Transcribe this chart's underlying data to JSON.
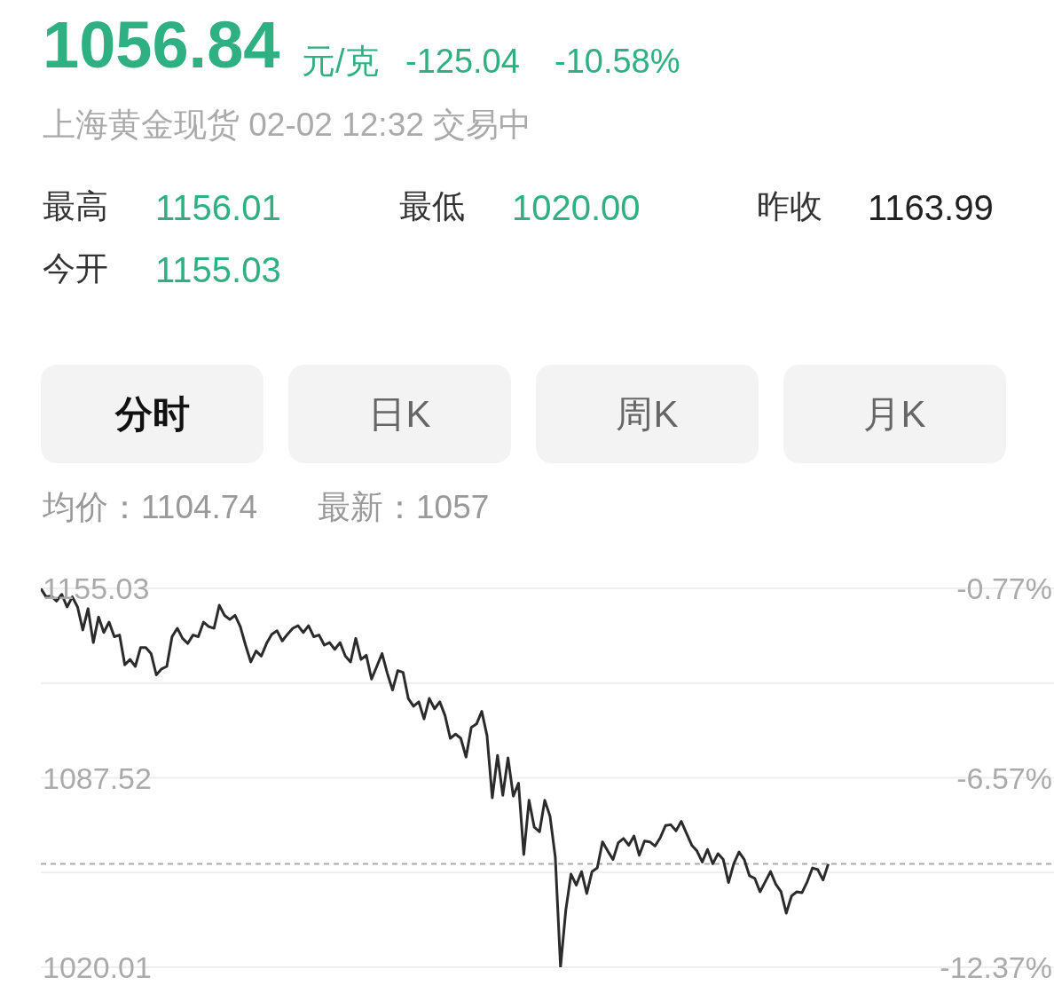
{
  "chart_data": {
    "type": "line",
    "title": "1056.84",
    "subtitle": "上海黄金现货 02-02 12:32 交易中",
    "annotations": [
      "元/克",
      "-125.04",
      "-10.58%",
      "最高",
      "1156.01",
      "最低",
      "1020.00",
      "昨收",
      "1163.99",
      "今开",
      "1155.03",
      "分时",
      "日K",
      "周K",
      "月K",
      "均价：1104.74",
      "最新：1057"
    ],
    "categories": [
      null,
      null,
      null,
      null,
      null,
      null,
      null,
      null,
      null,
      null,
      null,
      null,
      null,
      null,
      null,
      null,
      null,
      null,
      null,
      null,
      null,
      null,
      null,
      null,
      null,
      null,
      null,
      null,
      null,
      null,
      null,
      null,
      null,
      null,
      null,
      null,
      null,
      null,
      null,
      null,
      null,
      null,
      null,
      null,
      null,
      null,
      null,
      null,
      null,
      null,
      null,
      null,
      null,
      null,
      null,
      null,
      null,
      null,
      null,
      null,
      null,
      null,
      null,
      null,
      null,
      null,
      null,
      null,
      null,
      null,
      null,
      null,
      null,
      null,
      null,
      null,
      null,
      null,
      null,
      null,
      null,
      null,
      null,
      null,
      null,
      null,
      null,
      null,
      null,
      null,
      null,
      null,
      null,
      null,
      null,
      null,
      null,
      null,
      null,
      null,
      null,
      null,
      null,
      null,
      null,
      null,
      null,
      null,
      null,
      null,
      null,
      null,
      null,
      null,
      null,
      null,
      null,
      null,
      null,
      null,
      null,
      null,
      null,
      null,
      null,
      null,
      null,
      null,
      null,
      null,
      null,
      null,
      null,
      null,
      null,
      null,
      null,
      null,
      null,
      null,
      null,
      null,
      null,
      null,
      null,
      null,
      null,
      null,
      null,
      null,
      null,
      null,
      null,
      null,
      null,
      null,
      null,
      null,
      null,
      null,
      null,
      null,
      null,
      null,
      null,
      null,
      null,
      null,
      null,
      null,
      null,
      null,
      null,
      null,
      null,
      null,
      null,
      null,
      null,
      null,
      null,
      null,
      null,
      null,
      null,
      null,
      null,
      null,
      null,
      null,
      null,
      null,
      null,
      null
    ],
    "values": [
      1155.0,
      1152.0,
      1152.3,
      1150.5,
      1152.9,
      1148.4,
      1152.0,
      1148.4,
      1140.2,
      1147.8,
      1135.7,
      1144.8,
      1139.3,
      1143.0,
      1137.8,
      1138.4,
      1127.8,
      1129.7,
      1127.2,
      1133.9,
      1133.9,
      1131.8,
      1124.2,
      1126.3,
      1127.2,
      1137.8,
      1140.8,
      1137.2,
      1135.4,
      1138.4,
      1137.8,
      1143.0,
      1141.4,
      1140.8,
      1149.0,
      1145.4,
      1143.9,
      1145.4,
      1141.4,
      1134.8,
      1128.8,
      1132.7,
      1130.9,
      1135.4,
      1138.7,
      1139.9,
      1136.3,
      1138.7,
      1140.8,
      1141.7,
      1139.3,
      1141.7,
      1137.8,
      1138.4,
      1134.8,
      1135.7,
      1133.3,
      1135.7,
      1130.9,
      1128.8,
      1137.2,
      1129.7,
      1131.2,
      1122.7,
      1127.2,
      1131.8,
      1124.8,
      1118.8,
      1125.7,
      1125.1,
      1115.8,
      1113.0,
      1114.6,
      1108.5,
      1115.8,
      1112.1,
      1114.6,
      1109.7,
      1101.6,
      1103.1,
      1101.6,
      1094.9,
      1105.5,
      1106.7,
      1111.2,
      1102.5,
      1080.4,
      1095.5,
      1081.3,
      1094.6,
      1081.0,
      1085.6,
      1060.2,
      1079.5,
      1069.9,
      1068.3,
      1079.5,
      1073.8,
      1059.3,
      1020.1,
      1040.3,
      1053.2,
      1049.3,
      1054.1,
      1046.3,
      1054.1,
      1055.4,
      1064.7,
      1061.4,
      1058.4,
      1064.4,
      1065.9,
      1063.5,
      1066.8,
      1059.9,
      1065.0,
      1064.7,
      1063.2,
      1066.2,
      1070.5,
      1070.8,
      1068.6,
      1072.0,
      1067.7,
      1063.5,
      1061.4,
      1057.5,
      1062.0,
      1056.9,
      1060.5,
      1058.4,
      1050.2,
      1056.9,
      1061.1,
      1058.4,
      1052.6,
      1051.7,
      1046.9,
      1050.5,
      1054.1,
      1049.6,
      1046.9,
      1039.3,
      1045.4,
      1046.9,
      1046.6,
      1050.5,
      1055.4,
      1054.8,
      1051.1,
      1056.8,
      null,
      null,
      null,
      null,
      null,
      null,
      null,
      null,
      null,
      null,
      null,
      null,
      null,
      null,
      null,
      null,
      null,
      null,
      null,
      null,
      null,
      null,
      null,
      null,
      null,
      null,
      null,
      null,
      null,
      null,
      null,
      null,
      null,
      null,
      null,
      null,
      null,
      null,
      null,
      null,
      null,
      null,
      null
    ],
    "color": "#2b2b2b",
    "ylim": [
      1020.01,
      1155.03
    ],
    "yticks": [
      1155.03,
      {
        "value": 1121.275,
        "label": null
      },
      1087.52,
      {
        "value": 1053.765,
        "label": null
      },
      1020.01
    ],
    "y2lim": [
      -12.37,
      -0.77
    ],
    "y2ticks": [
      {
        "value": -0.77,
        "label": "-0.77%"
      },
      {
        "value": -6.57,
        "label": "-6.57%"
      },
      {
        "value": -12.37,
        "label": "-12.37%"
      }
    ],
    "ref_lines": [
      {
        "axis": "y",
        "value": 1056.84,
        "color": "#aaaaaa",
        "line_style": "dashed"
      }
    ],
    "grid": "y",
    "tick_labels": "y",
    "marker": "none",
    "line_style": "solid",
    "legend": false
  }
}
